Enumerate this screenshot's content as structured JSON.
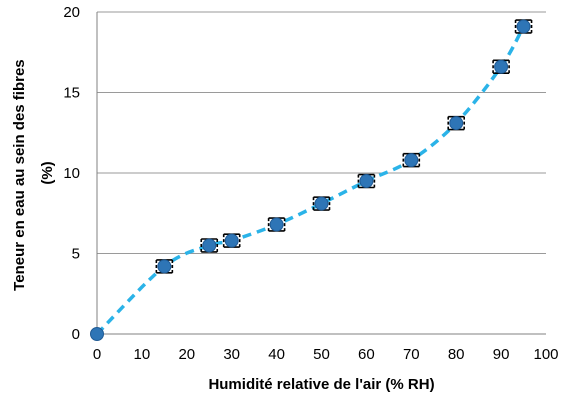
{
  "chart_data": {
    "type": "scatter",
    "xlabel": "Humidité relative de l'air (% RH)",
    "ylabel": [
      "Teneur en eau au sein des fibres",
      "(%)"
    ],
    "xlim": [
      0,
      100
    ],
    "ylim": [
      0,
      20
    ],
    "x_ticks": [
      0,
      10,
      20,
      30,
      40,
      50,
      60,
      70,
      80,
      90,
      100
    ],
    "y_ticks": [
      0,
      5,
      10,
      15,
      20
    ],
    "grid": "horizontal",
    "series": [
      {
        "x": [
          0,
          15,
          25,
          30,
          40,
          50,
          60,
          70,
          80,
          90,
          95
        ],
        "y": [
          0,
          4.2,
          5.5,
          5.8,
          6.8,
          8.1,
          9.5,
          10.8,
          13.1,
          16.6,
          19.1
        ],
        "error": [
          0,
          0.4,
          0.4,
          0.4,
          0.4,
          0.4,
          0.4,
          0.4,
          0.4,
          0.4,
          0.4
        ],
        "marker_color": "#2e75b6",
        "line_color": "#2bb3e8",
        "line_style": "dashed smooth"
      }
    ]
  }
}
